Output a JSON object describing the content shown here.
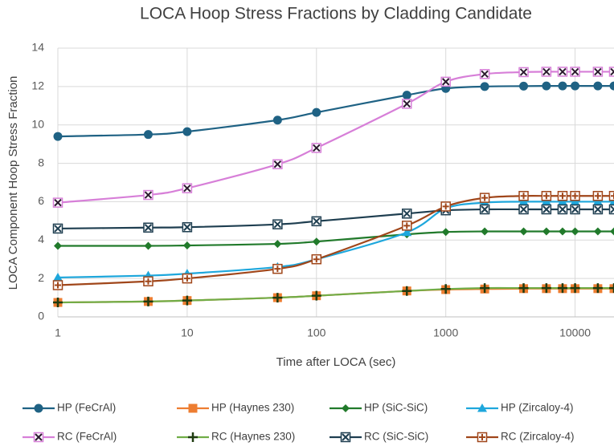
{
  "chart_data": {
    "type": "line",
    "title": "LOCA Hoop Stress Fractions by Cladding Candidate",
    "xlabel": "Time after LOCA (sec)",
    "ylabel": "LOCA Component Hoop Stress Fraction",
    "xscale": "log",
    "xlim": [
      1,
      20000
    ],
    "xticks": [
      1,
      10,
      100,
      1000,
      10000
    ],
    "ylim": [
      0,
      14
    ],
    "yticks": [
      0,
      2,
      4,
      6,
      8,
      10,
      12,
      14
    ],
    "grid": true,
    "legend": "bottom",
    "x": [
      1,
      5,
      10,
      50,
      100,
      500,
      1000,
      2000,
      4000,
      6000,
      8000,
      10000,
      15000,
      20000
    ],
    "series": [
      {
        "name": "HP (FeCrAl)",
        "color": "#1f6284",
        "marker": "circle",
        "values": [
          9.4,
          9.5,
          9.65,
          10.25,
          10.65,
          11.55,
          11.9,
          12.0,
          12.02,
          12.03,
          12.03,
          12.03,
          12.03,
          12.03
        ]
      },
      {
        "name": "HP (Haynes 230)",
        "color": "#ed7d31",
        "marker": "square",
        "values": [
          0.75,
          0.8,
          0.85,
          1.0,
          1.1,
          1.35,
          1.42,
          1.45,
          1.47,
          1.47,
          1.47,
          1.47,
          1.47,
          1.47
        ]
      },
      {
        "name": "HP (SiC-SiC)",
        "color": "#217a2b",
        "marker": "diamond",
        "values": [
          3.7,
          3.7,
          3.72,
          3.8,
          3.92,
          4.3,
          4.42,
          4.45,
          4.45,
          4.45,
          4.45,
          4.45,
          4.45,
          4.45
        ]
      },
      {
        "name": "HP (Zircaloy-4)",
        "color": "#1ea7dc",
        "marker": "triangle",
        "values": [
          2.05,
          2.15,
          2.25,
          2.6,
          3.0,
          4.4,
          5.65,
          5.95,
          6.0,
          6.0,
          6.0,
          6.0,
          6.0,
          6.0
        ]
      },
      {
        "name": "RC (FeCrAl)",
        "color": "#d77fd8",
        "marker": "x-square",
        "values": [
          5.95,
          6.35,
          6.7,
          7.95,
          8.8,
          11.1,
          12.25,
          12.65,
          12.75,
          12.77,
          12.77,
          12.77,
          12.77,
          12.77
        ]
      },
      {
        "name": "RC (Haynes 230)",
        "color": "#70ad47",
        "marker": "plus",
        "values": [
          0.75,
          0.8,
          0.85,
          1.0,
          1.1,
          1.35,
          1.45,
          1.5,
          1.5,
          1.5,
          1.5,
          1.5,
          1.5,
          1.5
        ]
      },
      {
        "name": "RC (SiC-SiC)",
        "color": "#1e3e50",
        "marker": "x-square",
        "values": [
          4.6,
          4.65,
          4.67,
          4.82,
          4.98,
          5.38,
          5.55,
          5.6,
          5.6,
          5.6,
          5.6,
          5.6,
          5.6,
          5.6
        ]
      },
      {
        "name": "RC (Zircaloy-4)",
        "color": "#a0461a",
        "marker": "plus-square",
        "values": [
          1.65,
          1.85,
          2.0,
          2.5,
          3.0,
          4.75,
          5.75,
          6.2,
          6.3,
          6.3,
          6.3,
          6.3,
          6.3,
          6.3
        ]
      }
    ]
  }
}
